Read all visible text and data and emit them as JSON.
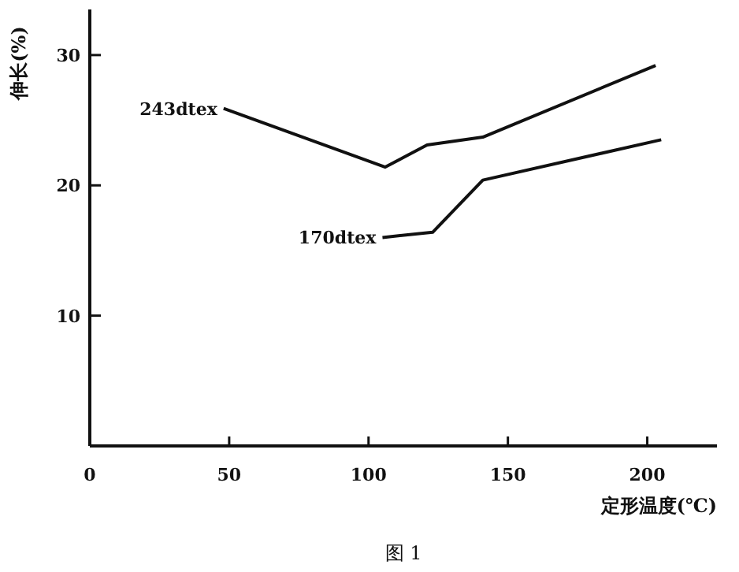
{
  "chart_data": {
    "type": "line",
    "xlabel": "定形温度(℃)",
    "ylabel": "伸长(%)",
    "annotations": [
      "图 1"
    ],
    "xlim": [
      0,
      225
    ],
    "ylim": [
      0,
      33.5
    ],
    "xticks": [
      0,
      50,
      100,
      150,
      200
    ],
    "yticks": [
      10,
      20,
      30
    ],
    "grid": false,
    "legend": false,
    "marker": "none",
    "line_style": "solid",
    "series": [
      {
        "name": "243dtex",
        "color": "#111111",
        "x": [
          48,
          106,
          121,
          141,
          203
        ],
        "values": [
          25.9,
          21.4,
          23.1,
          23.7,
          29.2
        ]
      },
      {
        "name": "170dtex",
        "color": "#111111",
        "x": [
          105,
          123,
          141,
          205
        ],
        "values": [
          16.0,
          16.4,
          20.4,
          23.5
        ]
      }
    ]
  }
}
